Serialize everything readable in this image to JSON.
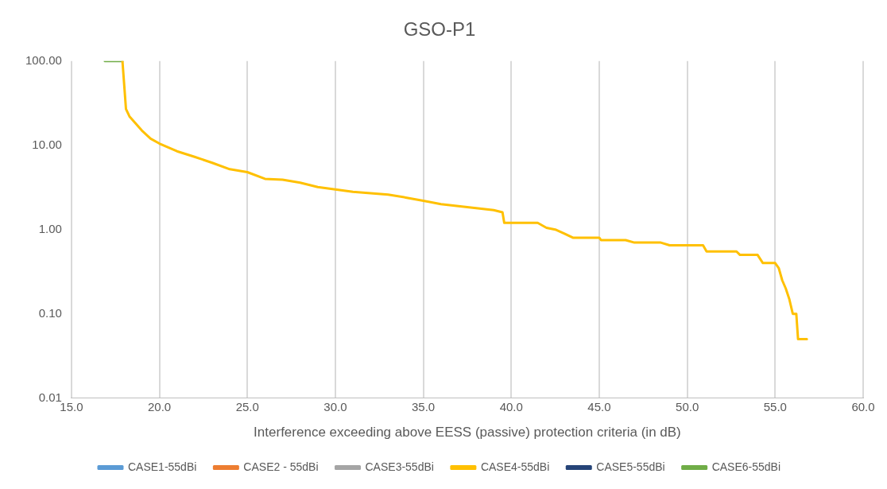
{
  "chart_data": {
    "type": "line",
    "title": "GSO-P1",
    "xlabel": "Interference exceeding above EESS (passive) protection criteria (in dB)",
    "log": "y",
    "grid": "x",
    "legend": "bottom",
    "marker": "none",
    "line_style": "solid",
    "xlim": [
      15,
      60
    ],
    "xticks": [
      {
        "value": 15,
        "label": "15.0"
      },
      {
        "value": 20,
        "label": "20.0"
      },
      {
        "value": 25,
        "label": "25.0"
      },
      {
        "value": 30,
        "label": "30.0"
      },
      {
        "value": 35,
        "label": "35.0"
      },
      {
        "value": 40,
        "label": "40.0"
      },
      {
        "value": 45,
        "label": "45.0"
      },
      {
        "value": 50,
        "label": "50.0"
      },
      {
        "value": 55,
        "label": "55.0"
      },
      {
        "value": 60,
        "label": "60.0"
      }
    ],
    "ylim": [
      0.01,
      100
    ],
    "yticks": [
      {
        "value": 0.01,
        "label": "0.01"
      },
      {
        "value": 0.1,
        "label": "0.10"
      },
      {
        "value": 1,
        "label": "1.00"
      },
      {
        "value": 10,
        "label": "10.00"
      },
      {
        "value": 100,
        "label": "100.00"
      }
    ],
    "series": [
      {
        "name": "CASE1-55dBi",
        "color": "#5b9bd5"
      },
      {
        "name": "CASE2 - 55dBi",
        "color": "#ed7d31"
      },
      {
        "name": "CASE3-55dBi",
        "color": "#a5a5a5"
      },
      {
        "name": "CASE4-55dBi",
        "color": "#ffc000",
        "x": [
          17.9,
          18.1,
          18.3,
          19,
          19.5,
          20,
          21,
          22,
          23,
          24,
          25,
          26,
          27,
          28,
          29,
          30,
          31,
          32,
          33,
          34,
          35,
          36,
          37,
          38,
          39,
          39.5,
          39.6,
          41.5,
          42,
          42.5,
          43,
          43.5,
          45,
          45.1,
          46.5,
          47,
          48.5,
          49,
          50.9,
          51.1,
          52.8,
          53,
          54,
          54.3,
          55,
          55.2,
          55.4,
          55.6,
          55.8,
          56,
          56.2,
          56.3,
          56.8
        ],
        "values": [
          100,
          27,
          22,
          15,
          12,
          10.5,
          8.5,
          7.3,
          6.2,
          5.2,
          4.8,
          4,
          3.9,
          3.6,
          3.2,
          3,
          2.8,
          2.7,
          2.6,
          2.4,
          2.2,
          2,
          1.9,
          1.8,
          1.7,
          1.6,
          1.2,
          1.2,
          1.05,
          1,
          0.9,
          0.8,
          0.8,
          0.75,
          0.75,
          0.7,
          0.7,
          0.65,
          0.65,
          0.55,
          0.55,
          0.5,
          0.5,
          0.4,
          0.4,
          0.35,
          0.25,
          0.2,
          0.15,
          0.1,
          0.1,
          0.05,
          0.05
        ]
      },
      {
        "name": "CASE5-55dBi",
        "color": "#264478"
      },
      {
        "name": "CASE6-55dBi",
        "color": "#70ad47",
        "x": [
          16.9,
          17.9
        ],
        "values": [
          100,
          100
        ]
      }
    ]
  }
}
